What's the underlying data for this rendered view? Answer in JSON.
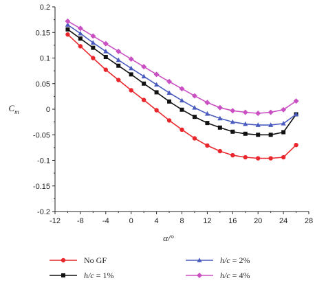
{
  "chart_data": {
    "type": "line",
    "xlabel": "α/°",
    "ylabel": "C",
    "ylabel_sub": "m",
    "xlim": [
      -12,
      28
    ],
    "ylim": [
      -0.2,
      0.2
    ],
    "xticks": [
      "-12",
      "-8",
      "-4",
      "0",
      "4",
      "8",
      "12",
      "16",
      "20",
      "24",
      "28"
    ],
    "xtick_values": [
      -12,
      -8,
      -4,
      0,
      4,
      8,
      12,
      16,
      20,
      24,
      28
    ],
    "yticks": [
      "0.2",
      "0.15",
      "0.1",
      "0.05",
      "0",
      "-0.05",
      "-0.1",
      "-0.15",
      "-0.2"
    ],
    "ytick_values": [
      0.2,
      0.15,
      0.1,
      0.05,
      0,
      -0.05,
      -0.1,
      -0.15,
      -0.2
    ],
    "grid": false,
    "legend_position": "bottom",
    "x": [
      -10,
      -8,
      -6,
      -4,
      -2,
      0,
      2,
      4,
      6,
      8,
      10,
      12,
      14,
      16,
      18,
      20,
      22,
      24,
      26
    ],
    "series": [
      {
        "name": "No GF",
        "name_parts": [
          {
            "text": "No GF",
            "italic": false
          }
        ],
        "color": "#e8262b",
        "marker": "circle",
        "values": [
          0.146,
          0.123,
          0.1,
          0.077,
          0.057,
          0.037,
          0.018,
          -0.002,
          -0.022,
          -0.04,
          -0.057,
          -0.071,
          -0.082,
          -0.09,
          -0.094,
          -0.096,
          -0.096,
          -0.094,
          -0.07
        ]
      },
      {
        "name": "h/c = 1%",
        "name_parts": [
          {
            "text": "h/c",
            "italic": true
          },
          {
            "text": " = 1%",
            "italic": false
          }
        ],
        "color": "#111111",
        "marker": "square",
        "values": [
          0.156,
          0.138,
          0.12,
          0.102,
          0.085,
          0.068,
          0.05,
          0.033,
          0.015,
          -0.001,
          -0.015,
          -0.027,
          -0.036,
          -0.044,
          -0.048,
          -0.05,
          -0.05,
          -0.045,
          -0.01
        ]
      },
      {
        "name": "h/c = 2%",
        "name_parts": [
          {
            "text": "h/c",
            "italic": true
          },
          {
            "text": " = 2%",
            "italic": false
          }
        ],
        "color": "#4a5bbf",
        "marker": "triangle",
        "values": [
          0.165,
          0.148,
          0.13,
          0.113,
          0.096,
          0.08,
          0.064,
          0.048,
          0.032,
          0.017,
          0.003,
          -0.009,
          -0.018,
          -0.025,
          -0.029,
          -0.031,
          -0.031,
          -0.028,
          -0.01
        ]
      },
      {
        "name": "h/c = 4%",
        "name_parts": [
          {
            "text": "h/c",
            "italic": true
          },
          {
            "text": " = 4%",
            "italic": false
          }
        ],
        "color": "#c94fc2",
        "marker": "diamond",
        "values": [
          0.172,
          0.158,
          0.143,
          0.128,
          0.113,
          0.098,
          0.083,
          0.068,
          0.054,
          0.04,
          0.026,
          0.013,
          0.003,
          -0.003,
          -0.006,
          -0.008,
          -0.006,
          -0.001,
          0.016
        ]
      }
    ]
  }
}
